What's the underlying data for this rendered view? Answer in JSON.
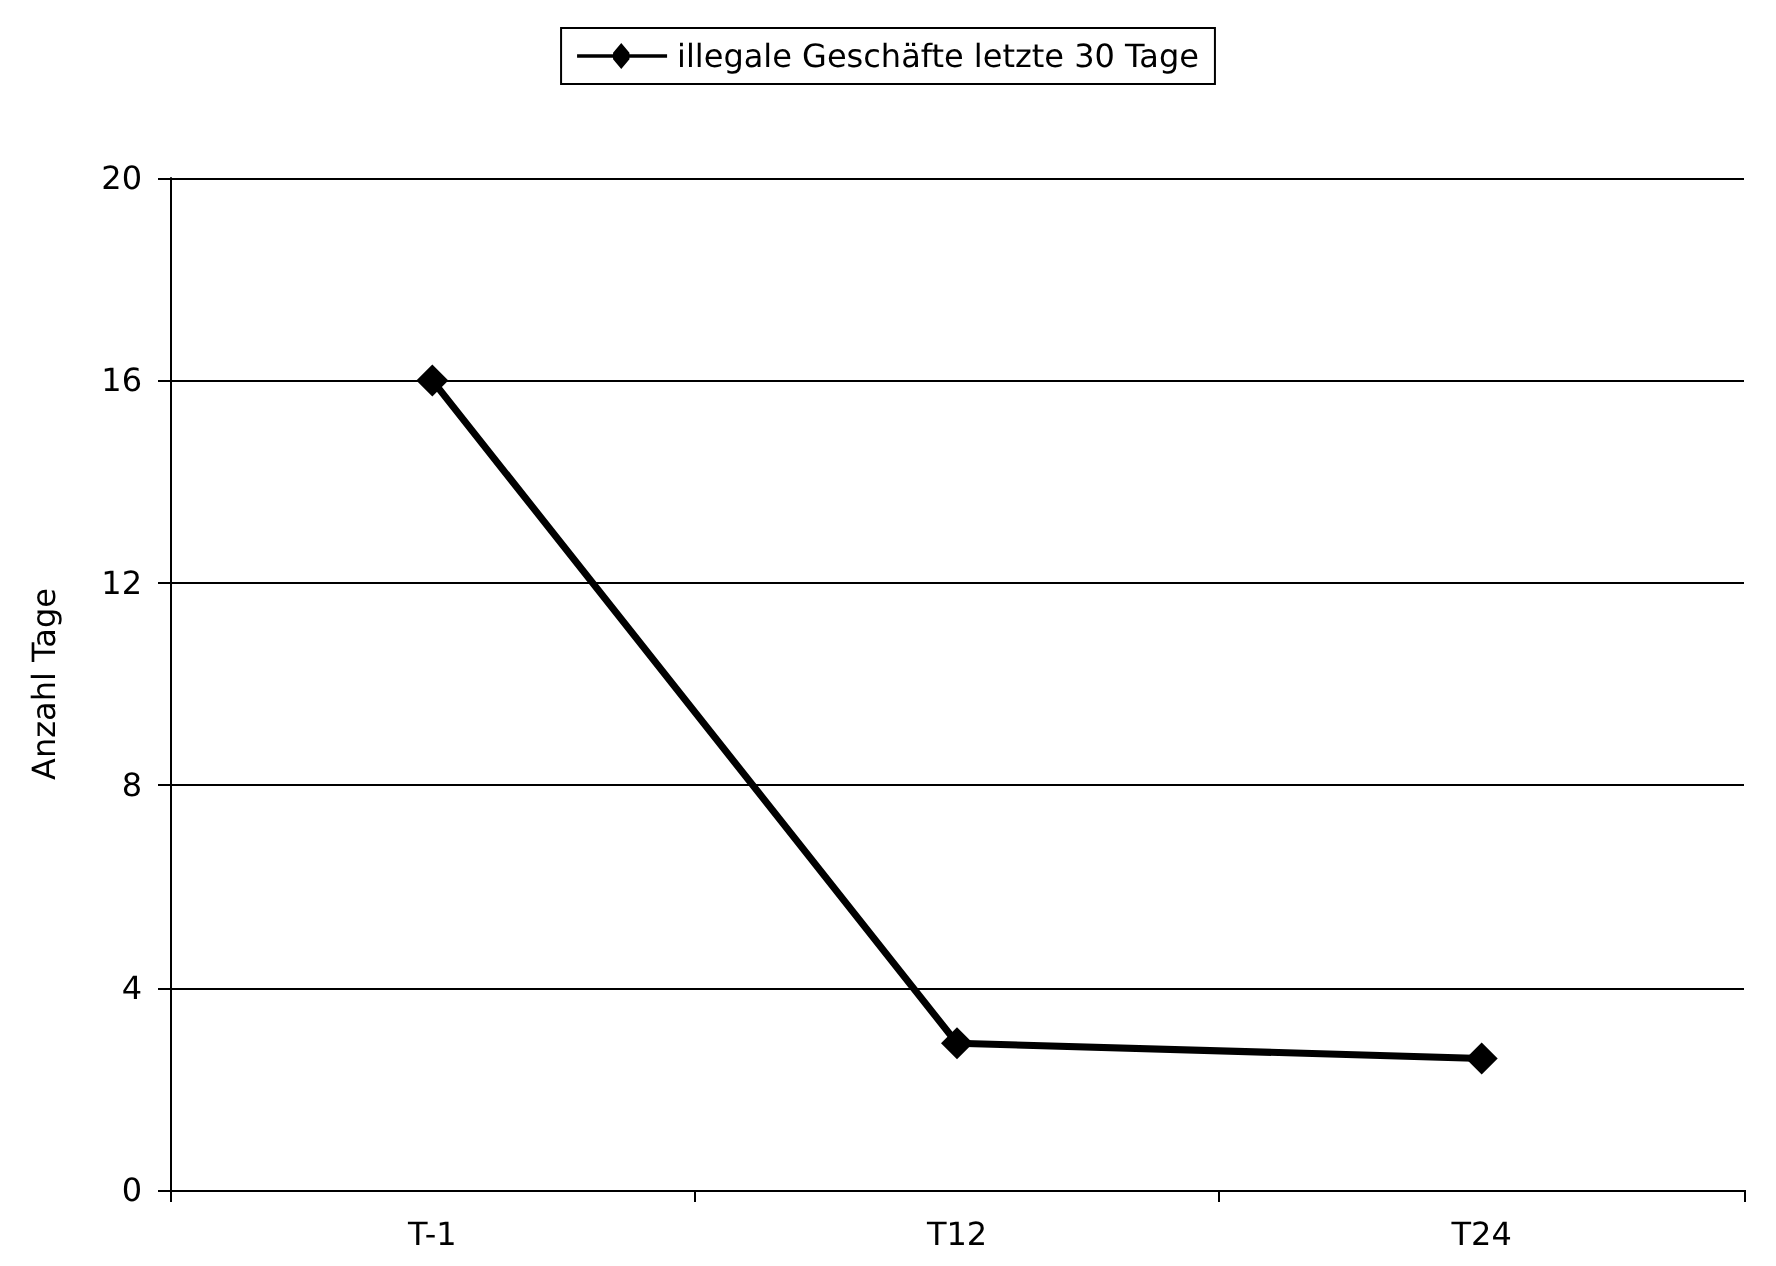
{
  "chart_data": {
    "type": "line",
    "ylabel": "Anzahl Tage",
    "categories": [
      "T-1",
      "T12",
      "T24"
    ],
    "series": [
      {
        "name": "illegale Geschäfte letzte 30 Tage",
        "color": "#000000",
        "values": [
          16,
          2.9,
          2.6
        ]
      }
    ],
    "ylim": [
      0,
      20
    ],
    "yticks": [
      0,
      4,
      8,
      12,
      16,
      20
    ],
    "grid": "y",
    "legend": "top",
    "marker": "diamond",
    "line_style": "solid"
  }
}
